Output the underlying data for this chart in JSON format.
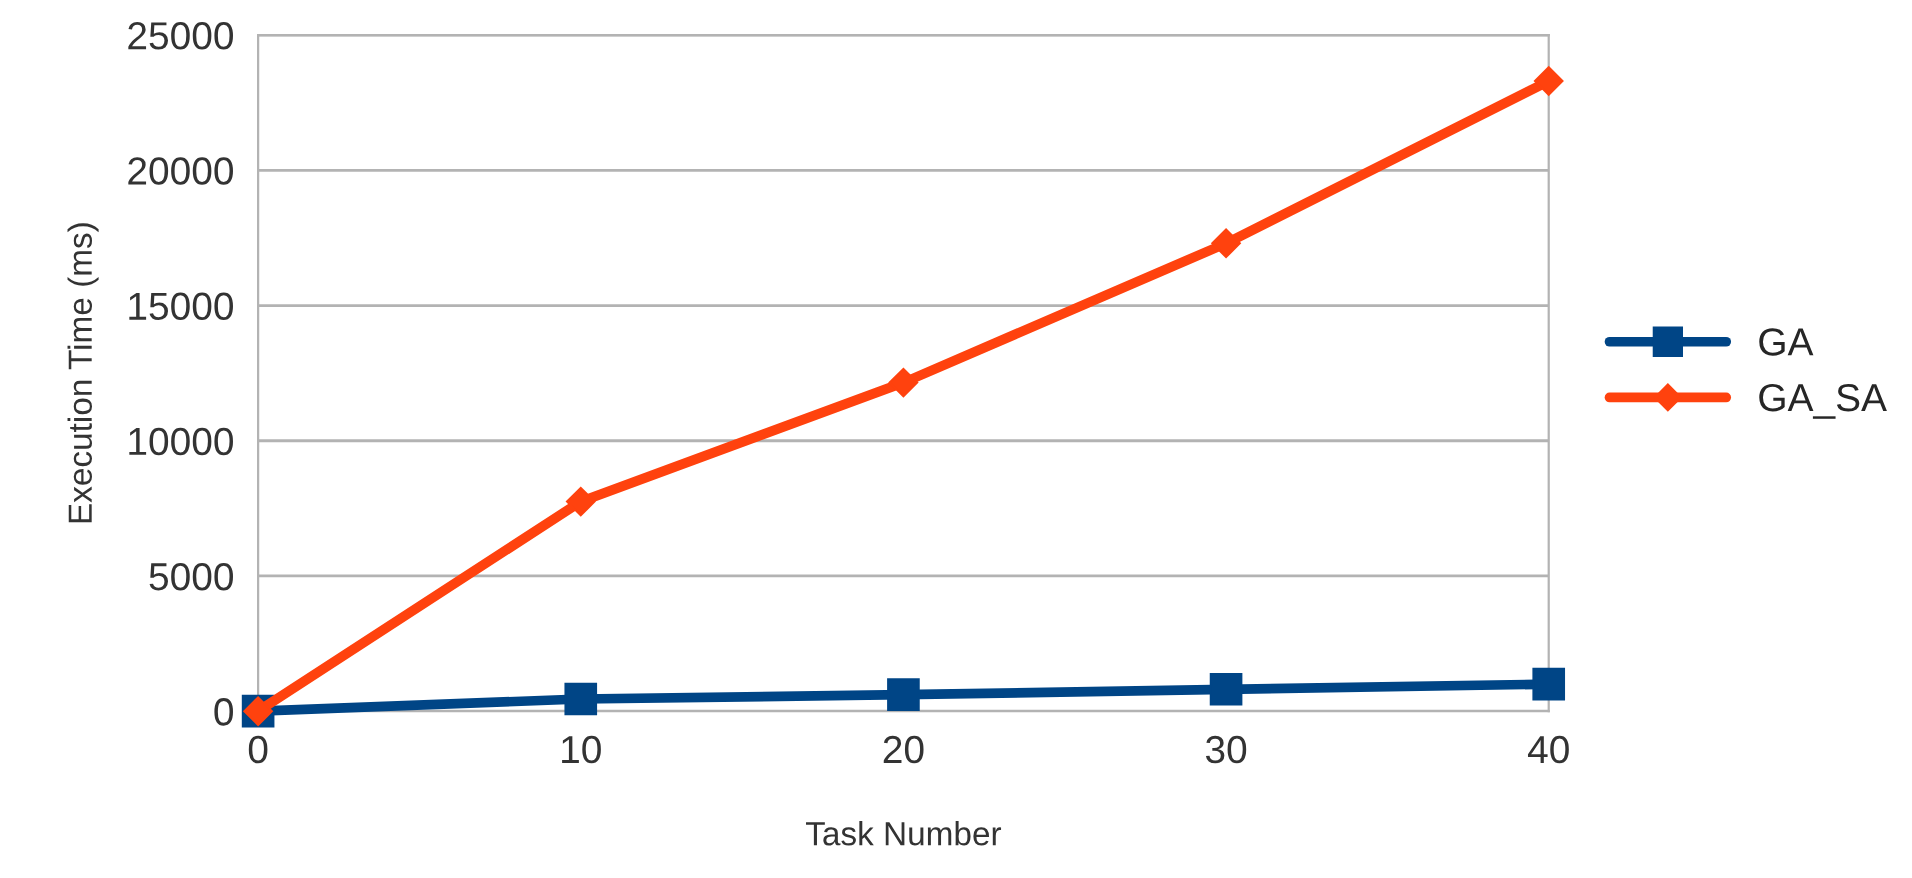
{
  "chart_data": {
    "type": "line",
    "xlabel": "Task Number",
    "ylabel": "Execution Time (ms)",
    "x": [
      0,
      10,
      20,
      30,
      40
    ],
    "series": [
      {
        "name": "GA",
        "color": "#004586",
        "marker": "square",
        "values": [
          0,
          450,
          610,
          810,
          1000
        ]
      },
      {
        "name": "GA_SA",
        "color": "#ff420e",
        "marker": "diamond",
        "values": [
          0,
          7750,
          12150,
          17300,
          23300
        ]
      }
    ],
    "xlim": [
      0,
      40
    ],
    "xticks": [
      0,
      10,
      20,
      30,
      40
    ],
    "ylim": [
      0,
      25000
    ],
    "yticks": [
      0,
      5000,
      10000,
      15000,
      20000,
      25000
    ],
    "grid": "y",
    "legend": "right",
    "line_style": "solid"
  }
}
